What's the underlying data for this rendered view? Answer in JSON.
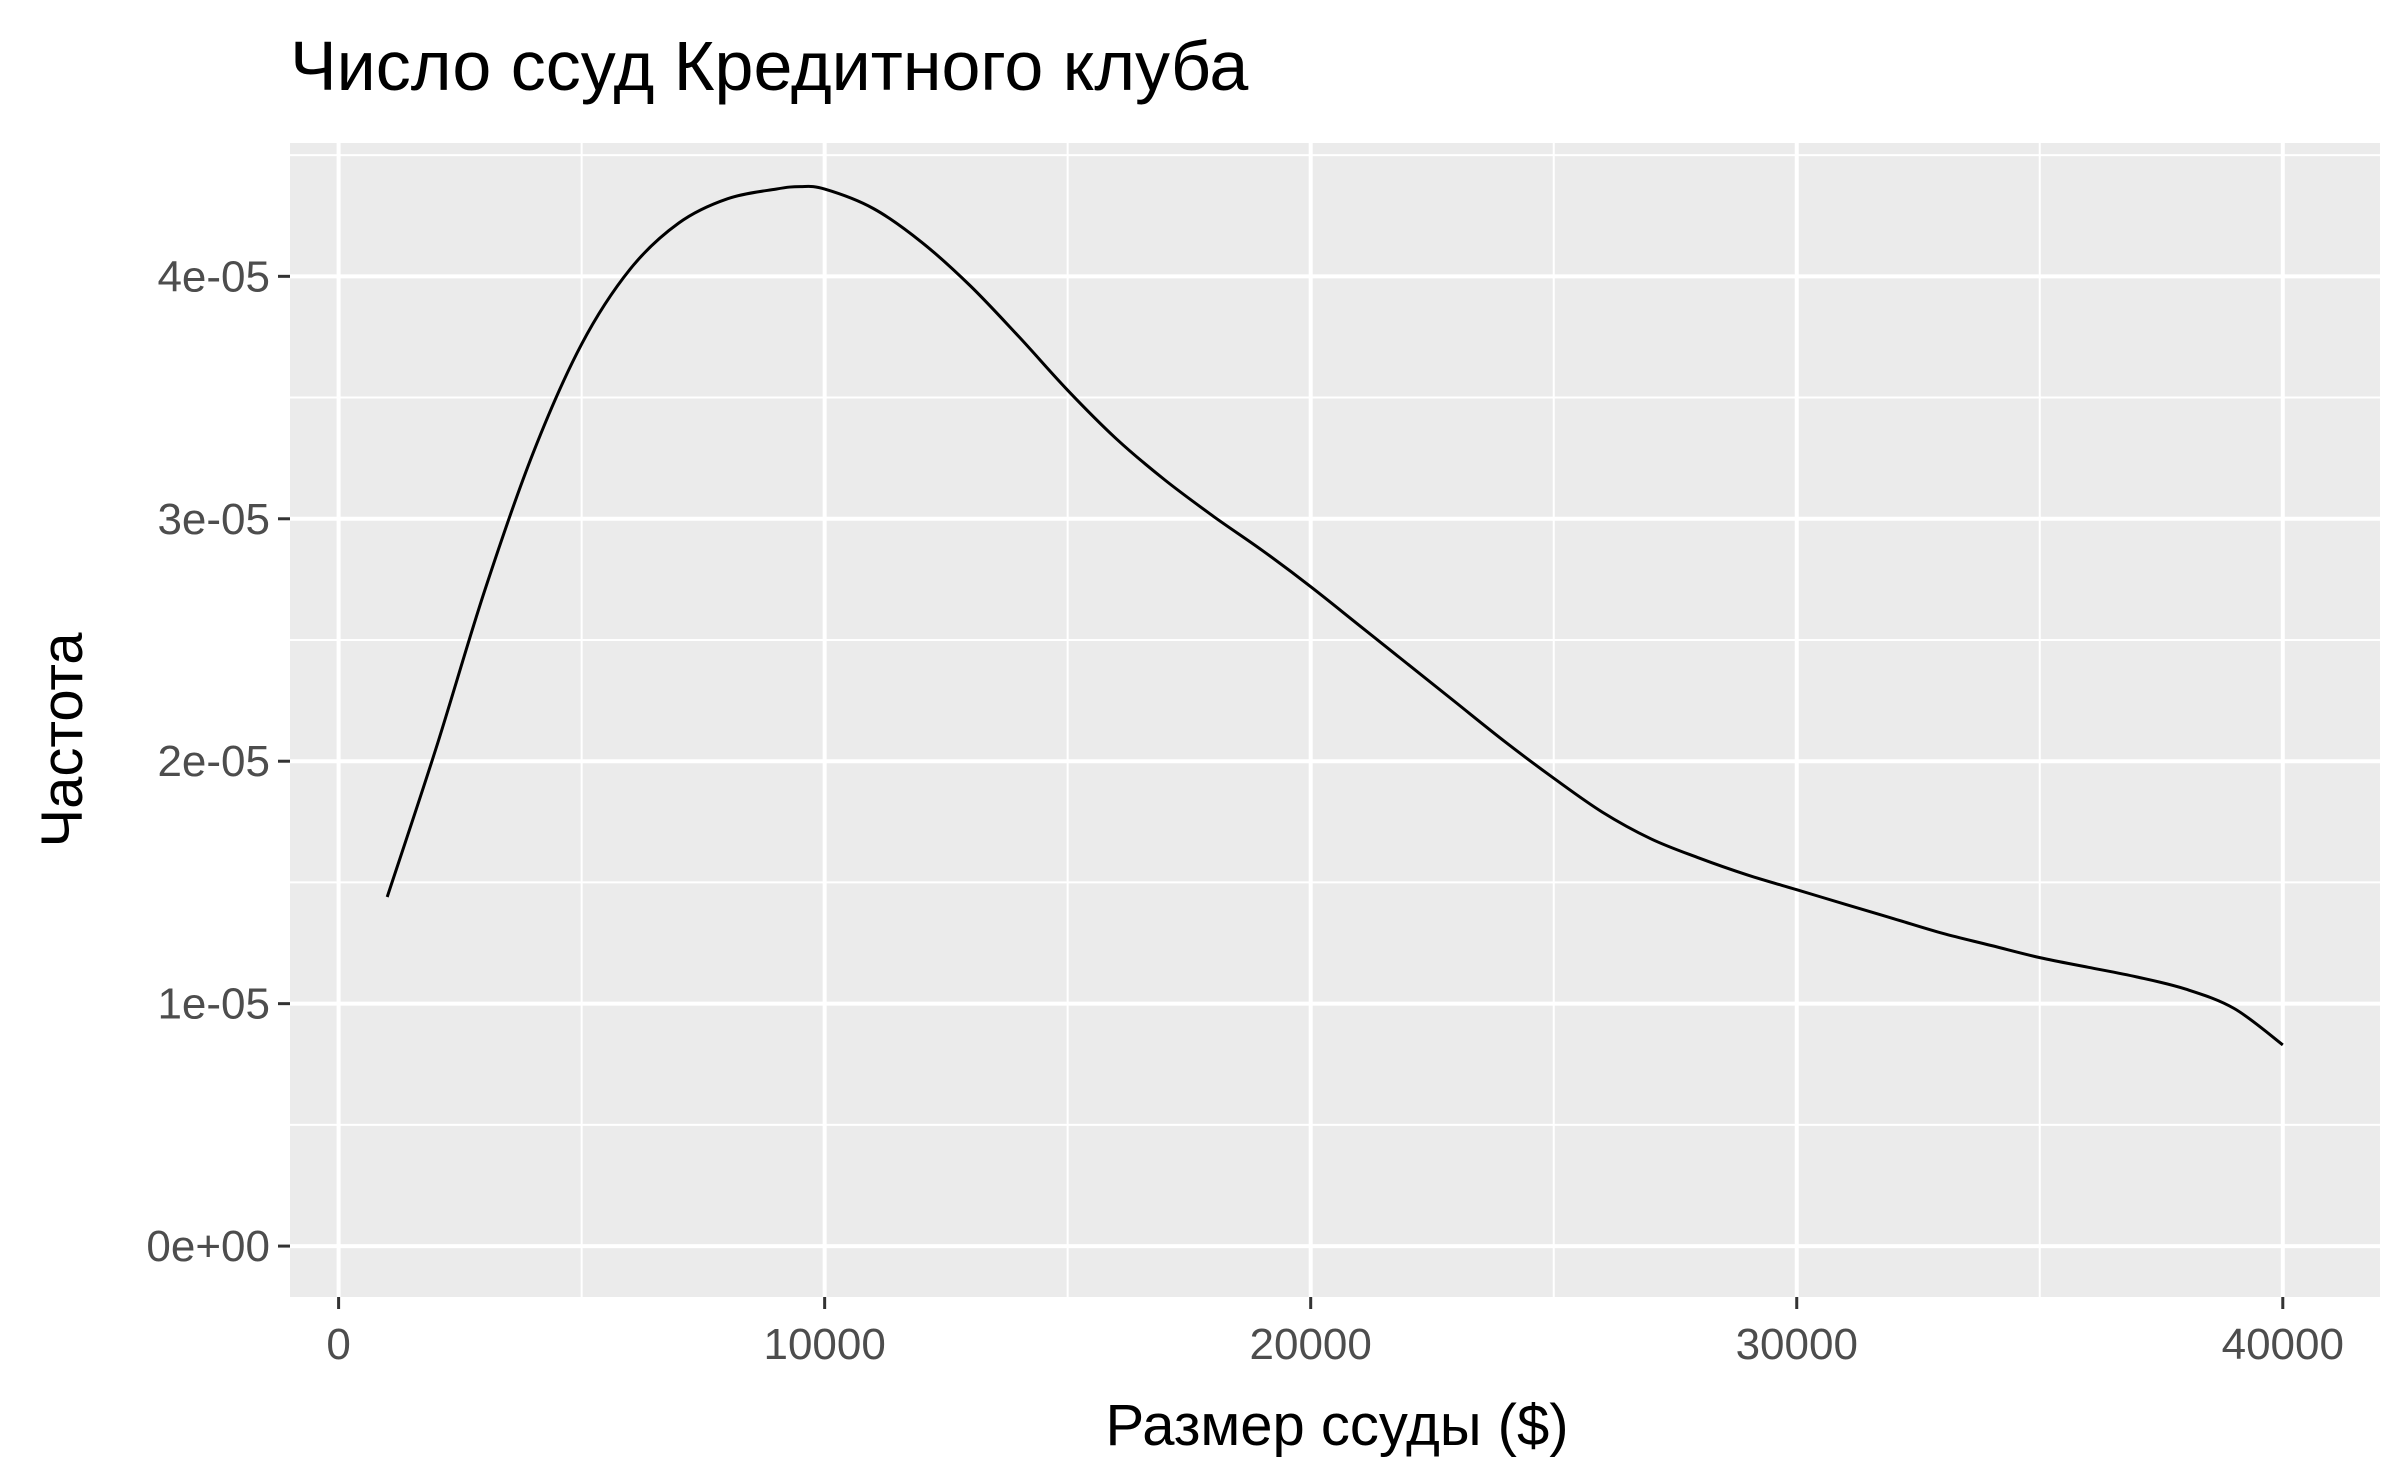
{
  "chart_data": {
    "type": "line",
    "title": "Число ссуд Кредитного клуба",
    "xlabel": "Размер ссуды ($)",
    "ylabel": "Частота",
    "xlim": [
      -1000,
      42000
    ],
    "ylim": [
      -2.1e-06,
      4.55e-05
    ],
    "x_ticks": [
      0,
      10000,
      20000,
      30000,
      40000
    ],
    "x_tick_labels": [
      "0",
      "10000",
      "20000",
      "30000",
      "40000"
    ],
    "y_ticks": [
      0,
      1e-05,
      2e-05,
      3e-05,
      4e-05
    ],
    "y_tick_labels": [
      "0e+00",
      "1e-05",
      "2e-05",
      "3e-05",
      "4e-05"
    ],
    "grid": true,
    "legend": "none",
    "colors": {
      "panel_background": "#ebebeb",
      "grid": "#ffffff",
      "line": "#000000",
      "tick_label": "#4d4d4d"
    },
    "series": [
      {
        "x": [
          1000,
          2000,
          3000,
          4000,
          5000,
          6000,
          7000,
          8000,
          9000,
          9500,
          10000,
          11000,
          12000,
          13000,
          14000,
          15000,
          16000,
          17000,
          18000,
          19000,
          20000,
          21000,
          22000,
          23000,
          24000,
          25000,
          26000,
          27000,
          28000,
          29000,
          30000,
          31000,
          32000,
          33000,
          34000,
          35000,
          36000,
          37000,
          38000,
          39000,
          40000
        ],
        "y": [
          1.44e-05,
          2.05e-05,
          2.7e-05,
          3.27e-05,
          3.72e-05,
          4.03e-05,
          4.22e-05,
          4.32e-05,
          4.36e-05,
          4.37e-05,
          4.36e-05,
          4.28e-05,
          4.14e-05,
          3.96e-05,
          3.75e-05,
          3.53e-05,
          3.33e-05,
          3.16e-05,
          3.01e-05,
          2.87e-05,
          2.72e-05,
          2.56e-05,
          2.4e-05,
          2.24e-05,
          2.08e-05,
          1.93e-05,
          1.79e-05,
          1.68e-05,
          1.6e-05,
          1.53e-05,
          1.47e-05,
          1.41e-05,
          1.35e-05,
          1.29e-05,
          1.24e-05,
          1.19e-05,
          1.15e-05,
          1.11e-05,
          1.06e-05,
          9.8e-06,
          8.3e-06
        ]
      }
    ]
  }
}
